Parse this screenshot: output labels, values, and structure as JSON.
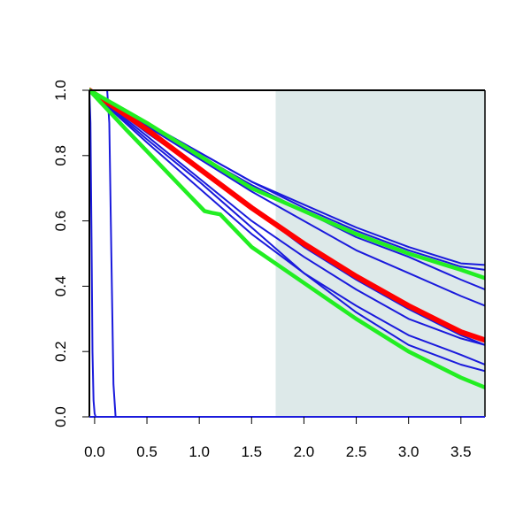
{
  "chart_data": {
    "type": "line",
    "title": "",
    "xlabel": "",
    "ylabel": "",
    "xlim": [
      -0.05,
      3.73
    ],
    "ylim": [
      0,
      1
    ],
    "x_ticks": [
      0,
      0.5,
      1,
      1.5,
      2,
      2.5,
      3,
      3.5
    ],
    "x_tick_labels": [
      "0.0",
      "0.5",
      "1.0",
      "1.5",
      "2.0",
      "2.5",
      "3.0",
      "3.5"
    ],
    "y_ticks": [
      0,
      0.2,
      0.4,
      0.6,
      0.8,
      1
    ],
    "y_tick_labels": [
      "0.0",
      "0.2",
      "0.4",
      "0.6",
      "0.8",
      "1.0"
    ],
    "shaded_region": {
      "x_from": 1.73,
      "x_to": 3.73,
      "color": "#dde9e9"
    },
    "colors": {
      "blue": "#1a1adc",
      "red": "#ff0000",
      "green": "#22ee22"
    },
    "series": [
      {
        "color": "blue",
        "width": 2,
        "points": [
          [
            -0.05,
            1
          ],
          [
            -0.04,
            0.9
          ],
          [
            -0.03,
            0.55
          ],
          [
            -0.02,
            0.2
          ],
          [
            -0.01,
            0.05
          ],
          [
            0.0,
            0.01
          ],
          [
            0.01,
            0
          ],
          [
            3.73,
            0
          ]
        ]
      },
      {
        "color": "blue",
        "width": 2,
        "points": [
          [
            -0.05,
            1
          ],
          [
            0.12,
            1
          ],
          [
            0.14,
            0.9
          ],
          [
            0.16,
            0.5
          ],
          [
            0.18,
            0.1
          ],
          [
            0.2,
            0
          ],
          [
            3.73,
            0
          ]
        ]
      },
      {
        "color": "blue",
        "width": 2,
        "points": [
          [
            -0.05,
            1
          ],
          [
            0.5,
            0.9
          ],
          [
            1,
            0.81
          ],
          [
            1.5,
            0.72
          ],
          [
            2,
            0.65
          ],
          [
            2.5,
            0.58
          ],
          [
            3,
            0.52
          ],
          [
            3.5,
            0.47
          ],
          [
            3.73,
            0.465
          ]
        ]
      },
      {
        "color": "blue",
        "width": 2,
        "points": [
          [
            -0.05,
            1
          ],
          [
            0.5,
            0.9
          ],
          [
            1,
            0.81
          ],
          [
            1.5,
            0.72
          ],
          [
            2,
            0.64
          ],
          [
            2.5,
            0.57
          ],
          [
            3,
            0.51
          ],
          [
            3.5,
            0.46
          ],
          [
            3.73,
            0.45
          ]
        ]
      },
      {
        "color": "blue",
        "width": 2,
        "points": [
          [
            -0.05,
            1
          ],
          [
            0.5,
            0.895
          ],
          [
            1,
            0.8
          ],
          [
            1.5,
            0.71
          ],
          [
            2,
            0.63
          ],
          [
            2.5,
            0.55
          ],
          [
            3,
            0.49
          ],
          [
            3.5,
            0.42
          ],
          [
            3.73,
            0.39
          ]
        ]
      },
      {
        "color": "blue",
        "width": 2,
        "points": [
          [
            -0.05,
            1
          ],
          [
            0.5,
            0.89
          ],
          [
            1,
            0.79
          ],
          [
            1.5,
            0.69
          ],
          [
            2,
            0.6
          ],
          [
            2.5,
            0.51
          ],
          [
            3,
            0.44
          ],
          [
            3.5,
            0.37
          ],
          [
            3.73,
            0.34
          ]
        ]
      },
      {
        "color": "blue",
        "width": 2,
        "points": [
          [
            -0.05,
            1
          ],
          [
            0.5,
            0.86
          ],
          [
            1,
            0.73
          ],
          [
            1.5,
            0.6
          ],
          [
            2,
            0.49
          ],
          [
            2.5,
            0.39
          ],
          [
            3,
            0.3
          ],
          [
            3.5,
            0.24
          ],
          [
            3.73,
            0.22
          ]
        ]
      },
      {
        "color": "blue",
        "width": 2,
        "points": [
          [
            -0.05,
            1
          ],
          [
            0.5,
            0.84
          ],
          [
            1,
            0.7
          ],
          [
            1.5,
            0.56
          ],
          [
            2,
            0.44
          ],
          [
            2.5,
            0.34
          ],
          [
            3,
            0.25
          ],
          [
            3.5,
            0.19
          ],
          [
            3.73,
            0.16
          ]
        ]
      },
      {
        "color": "blue",
        "width": 2,
        "points": [
          [
            -0.05,
            1
          ],
          [
            0.5,
            0.85
          ],
          [
            1,
            0.72
          ],
          [
            1.5,
            0.58
          ],
          [
            2,
            0.44
          ],
          [
            2.5,
            0.32
          ],
          [
            3,
            0.22
          ],
          [
            3.5,
            0.16
          ],
          [
            3.73,
            0.14
          ]
        ]
      },
      {
        "color": "blue",
        "width": 2,
        "points": [
          [
            -0.05,
            1
          ],
          [
            0.5,
            0.87
          ],
          [
            1,
            0.76
          ],
          [
            1.5,
            0.64
          ],
          [
            2,
            0.52
          ],
          [
            2.5,
            0.42
          ],
          [
            3,
            0.33
          ],
          [
            3.5,
            0.25
          ],
          [
            3.73,
            0.22
          ]
        ]
      },
      {
        "color": "red",
        "width": 6,
        "points": [
          [
            -0.05,
            1
          ],
          [
            0.5,
            0.88
          ],
          [
            1,
            0.76
          ],
          [
            1.5,
            0.64
          ],
          [
            2,
            0.53
          ],
          [
            2.5,
            0.43
          ],
          [
            3,
            0.34
          ],
          [
            3.5,
            0.26
          ],
          [
            3.73,
            0.235
          ]
        ]
      },
      {
        "color": "green",
        "width": 4.5,
        "points": [
          [
            -0.05,
            1
          ],
          [
            0.5,
            0.9
          ],
          [
            1,
            0.8
          ],
          [
            1.5,
            0.7
          ],
          [
            2,
            0.63
          ],
          [
            2.5,
            0.56
          ],
          [
            3,
            0.5
          ],
          [
            3.5,
            0.45
          ],
          [
            3.73,
            0.425
          ]
        ]
      },
      {
        "color": "green",
        "width": 4.5,
        "points": [
          [
            -0.05,
            1
          ],
          [
            0.3,
            0.88
          ],
          [
            0.6,
            0.78
          ],
          [
            0.9,
            0.68
          ],
          [
            1.05,
            0.63
          ],
          [
            1.12,
            0.625
          ],
          [
            1.2,
            0.62
          ],
          [
            1.5,
            0.52
          ],
          [
            2,
            0.41
          ],
          [
            2.5,
            0.3
          ],
          [
            3,
            0.2
          ],
          [
            3.5,
            0.12
          ],
          [
            3.73,
            0.09
          ]
        ]
      }
    ]
  }
}
